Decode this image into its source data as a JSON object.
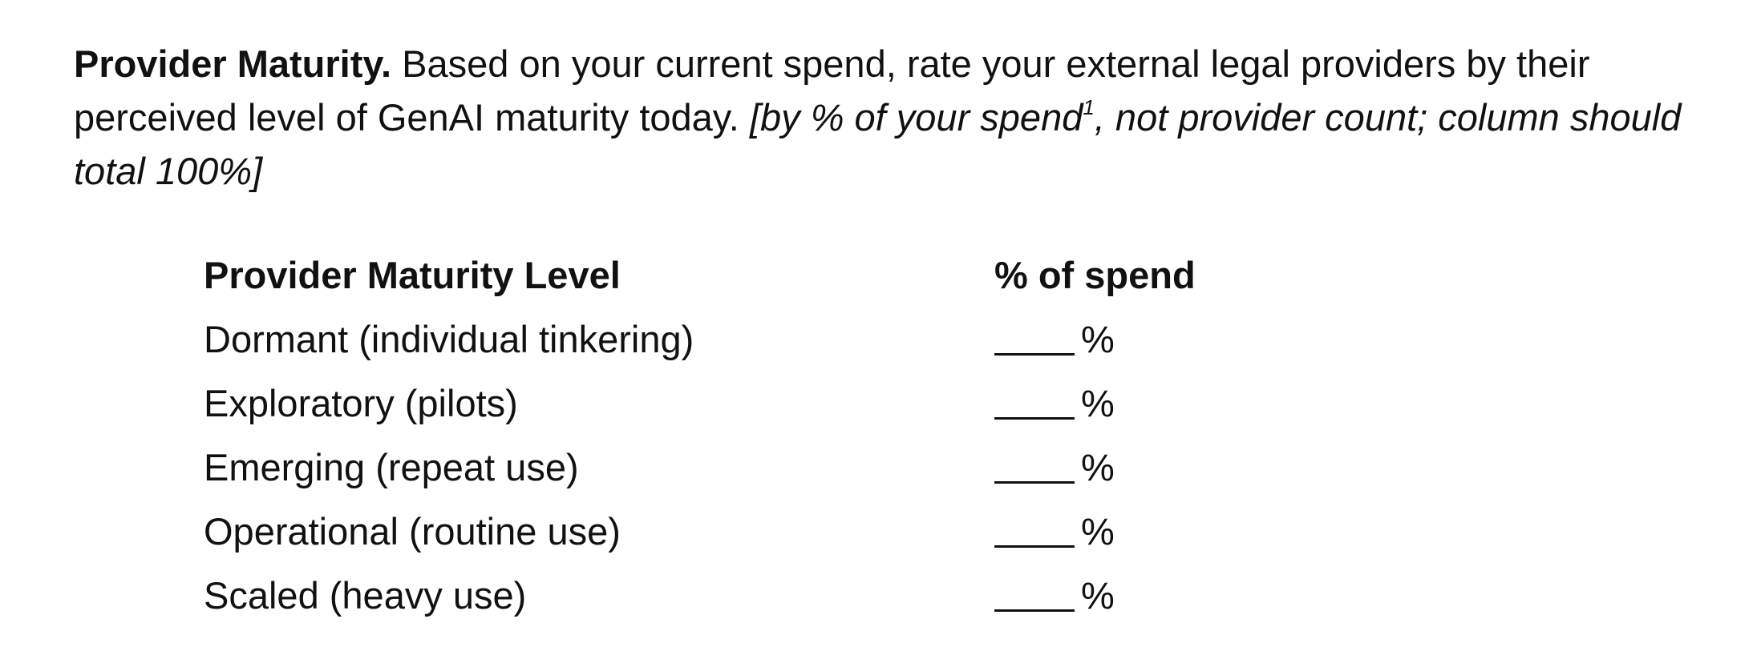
{
  "question": {
    "lead": "Provider Maturity.",
    "text": " Based on your current spend, rate your external legal providers by their perceived level of GenAI maturity today. ",
    "note_open": "[by % of your spend",
    "note_sup": "1",
    "note_close": ", not provider count; column should total 100%]"
  },
  "table": {
    "headers": {
      "level": "Provider Maturity Level",
      "spend": "% of spend"
    },
    "rows": [
      {
        "level": "Dormant (individual tinkering)",
        "unit": "%"
      },
      {
        "level": "Exploratory (pilots)",
        "unit": "%"
      },
      {
        "level": "Emerging (repeat use)",
        "unit": "%"
      },
      {
        "level": "Operational (routine use)",
        "unit": "%"
      },
      {
        "level": "Scaled (heavy use)",
        "unit": "%"
      }
    ]
  }
}
